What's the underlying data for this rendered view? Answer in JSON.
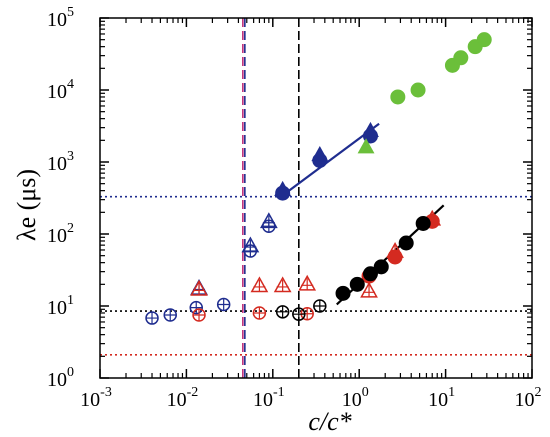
{
  "chart_data": {
    "type": "scatter",
    "xlabel": "c/c*",
    "ylabel": "λe (μs)",
    "xscale": "log",
    "yscale": "log",
    "xlim": [
      0.001,
      100
    ],
    "ylim": [
      1,
      100000
    ],
    "x_ticks": [
      {
        "value": 0.001,
        "base": "10",
        "exp": "-3"
      },
      {
        "value": 0.01,
        "base": "10",
        "exp": "-2"
      },
      {
        "value": 0.1,
        "base": "10",
        "exp": "-1"
      },
      {
        "value": 1,
        "base": "10",
        "exp": "0"
      },
      {
        "value": 10,
        "base": "10",
        "exp": "1"
      },
      {
        "value": 100,
        "base": "10",
        "exp": "2"
      }
    ],
    "y_ticks": [
      {
        "value": 1,
        "base": "10",
        "exp": "0"
      },
      {
        "value": 10,
        "base": "10",
        "exp": "1"
      },
      {
        "value": 100,
        "base": "10",
        "exp": "2"
      },
      {
        "value": 1000,
        "base": "10",
        "exp": "3"
      },
      {
        "value": 10000,
        "base": "10",
        "exp": "4"
      },
      {
        "value": 100000,
        "base": "10",
        "exp": "5"
      }
    ],
    "colors": {
      "blue": "#1f2d8f",
      "red": "#d42a20",
      "black": "#000000",
      "green": "#6bbf3a",
      "magenta": "#c0307a"
    },
    "reference_lines": [
      {
        "orientation": "vertical",
        "value": 0.045,
        "color": "#c0307a",
        "style": "dashed"
      },
      {
        "orientation": "vertical",
        "value": 0.045,
        "color": "#1f2d8f",
        "style": "dashed"
      },
      {
        "orientation": "vertical",
        "value": 0.2,
        "color": "#000000",
        "style": "dashed"
      },
      {
        "orientation": "horizontal",
        "value": 330,
        "color": "#1f2d8f",
        "style": "dotted"
      },
      {
        "orientation": "horizontal",
        "value": 8.5,
        "color": "#000000",
        "style": "dotted"
      },
      {
        "orientation": "horizontal",
        "value": 2.1,
        "color": "#d42a20",
        "style": "dotted"
      }
    ],
    "fit_lines": [
      {
        "color": "#1f2d8f",
        "x": [
          0.12,
          1.7
        ],
        "y": [
          320,
          3400
        ]
      },
      {
        "color": "#000000",
        "x": [
          0.55,
          9.5
        ],
        "y": [
          10.5,
          250
        ]
      }
    ],
    "series": [
      {
        "color": "#1f2d8f",
        "marker": "circle-plus-open",
        "points": [
          [
            0.004,
            6.8
          ],
          [
            0.0065,
            7.5
          ],
          [
            0.013,
            9.5
          ],
          [
            0.027,
            10.5
          ]
        ]
      },
      {
        "color": "#1f2d8f",
        "marker": "triangle-plus-open",
        "points": [
          [
            0.014,
            17.5
          ],
          [
            0.055,
            68
          ],
          [
            0.09,
            148
          ]
        ]
      },
      {
        "color": "#1f2d8f",
        "marker": "circle-plus-open",
        "points": [
          [
            0.055,
            58
          ],
          [
            0.09,
            128
          ]
        ]
      },
      {
        "color": "#1f2d8f",
        "marker": "circle-filled",
        "points": [
          [
            0.13,
            370
          ],
          [
            0.35,
            1050
          ],
          [
            1.35,
            2300
          ]
        ]
      },
      {
        "color": "#1f2d8f",
        "marker": "triangle-filled",
        "points": [
          [
            0.13,
            410
          ],
          [
            0.35,
            1250
          ],
          [
            1.35,
            2700
          ]
        ]
      },
      {
        "color": "#d42a20",
        "marker": "circle-plus-open",
        "points": [
          [
            0.014,
            7.5
          ],
          [
            0.07,
            8.0
          ],
          [
            0.25,
            7.8
          ]
        ]
      },
      {
        "color": "#d42a20",
        "marker": "triangle-plus-open",
        "points": [
          [
            0.014,
            17
          ],
          [
            0.07,
            19
          ],
          [
            0.13,
            19
          ],
          [
            0.25,
            20
          ],
          [
            1.3,
            16
          ],
          [
            2.6,
            57
          ],
          [
            7.0,
            160
          ]
        ]
      },
      {
        "color": "#d42a20",
        "marker": "circle-filled",
        "points": [
          [
            1.3,
            26
          ],
          [
            2.6,
            48
          ],
          [
            7.0,
            150
          ]
        ]
      },
      {
        "color": "#000000",
        "marker": "circle-plus-open",
        "points": [
          [
            0.13,
            8.3
          ],
          [
            0.2,
            7.7
          ],
          [
            0.35,
            10
          ]
        ]
      },
      {
        "color": "#000000",
        "marker": "circle-filled",
        "points": [
          [
            0.65,
            15
          ],
          [
            0.95,
            20
          ],
          [
            1.35,
            28
          ],
          [
            1.8,
            35
          ],
          [
            3.5,
            75
          ],
          [
            5.5,
            140
          ]
        ]
      },
      {
        "color": "#6bbf3a",
        "marker": "triangle-filled",
        "points": [
          [
            1.2,
            1600
          ]
        ]
      },
      {
        "color": "#6bbf3a",
        "marker": "circle-filled",
        "points": [
          [
            2.8,
            8000
          ],
          [
            4.8,
            10000
          ],
          [
            12,
            22000
          ],
          [
            15,
            28000
          ],
          [
            22,
            40000
          ],
          [
            28,
            50000
          ]
        ]
      }
    ]
  }
}
